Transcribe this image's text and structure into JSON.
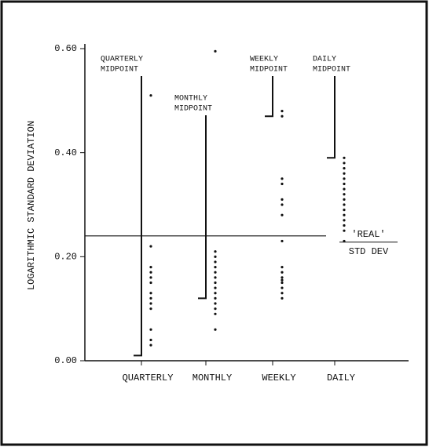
{
  "chart_data": {
    "type": "strip",
    "ylabel": "LOGARITHMIC STANDARD DEVIATION",
    "categories": [
      "QUARTERLY",
      "MONTHLY",
      "WEEKLY",
      "DAILY"
    ],
    "midpoint_labels": [
      [
        "QUARTERLY",
        "MIDPOINT"
      ],
      [
        "MONTHLY",
        "MIDPOINT"
      ],
      [
        "WEEKLY",
        "MIDPOINT"
      ],
      [
        "DAILY",
        "MIDPOINT"
      ]
    ],
    "midpoints": [
      0.01,
      0.12,
      0.47,
      0.39
    ],
    "points": [
      [
        0.51,
        0.22,
        0.18,
        0.17,
        0.16,
        0.15,
        0.13,
        0.12,
        0.11,
        0.1,
        0.06,
        0.04,
        0.03
      ],
      [
        0.595,
        0.21,
        0.2,
        0.19,
        0.18,
        0.17,
        0.16,
        0.15,
        0.14,
        0.13,
        0.12,
        0.11,
        0.1,
        0.09,
        0.06
      ],
      [
        0.48,
        0.47,
        0.35,
        0.34,
        0.31,
        0.3,
        0.28,
        0.23,
        0.18,
        0.17,
        0.16,
        0.155,
        0.15,
        0.14,
        0.13,
        0.12
      ],
      [
        0.39,
        0.38,
        0.37,
        0.36,
        0.35,
        0.34,
        0.33,
        0.32,
        0.31,
        0.3,
        0.29,
        0.28,
        0.27,
        0.26,
        0.25,
        0.23
      ]
    ],
    "reference": {
      "value": 0.24,
      "label_top": "'REAL'",
      "label_bottom": "STD DEV"
    },
    "ylim": [
      0,
      0.6
    ],
    "yticks": [
      {
        "value": 0,
        "label": "0.00"
      },
      {
        "value": 0.2,
        "label": "0.20"
      },
      {
        "value": 0.4,
        "label": "0.40"
      },
      {
        "value": 0.6,
        "label": "0.60"
      }
    ],
    "color": "#111"
  }
}
